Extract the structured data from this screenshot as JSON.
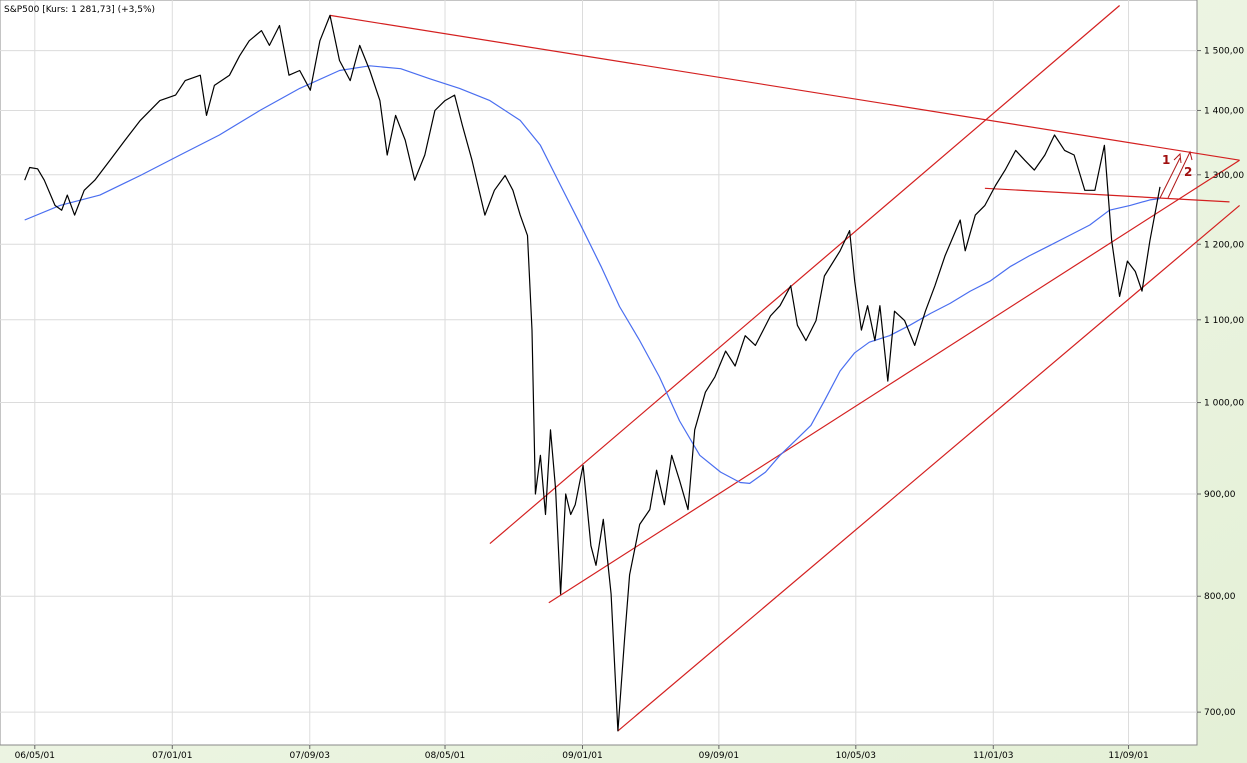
{
  "chart_data": {
    "type": "line",
    "title": "S&P500 [Kurs: 1 281,73] (+3,5%)",
    "log_scale": true,
    "grid": true,
    "xlim": [
      "06/02/28",
      "12/01/01"
    ],
    "xticks": [
      "06/05/01",
      "07/01/01",
      "07/09/03",
      "08/05/01",
      "09/01/01",
      "09/09/01",
      "10/05/03",
      "11/01/03",
      "11/09/01"
    ],
    "ylim": [
      674,
      1590
    ],
    "yticks": [
      {
        "value": 700,
        "label": "700,00"
      },
      {
        "value": 800,
        "label": "800,00"
      },
      {
        "value": 900,
        "label": "900,00"
      },
      {
        "value": 1000,
        "label": "1 000,00"
      },
      {
        "value": 1100,
        "label": "1 100,00"
      },
      {
        "value": 1200,
        "label": "1 200,00"
      },
      {
        "value": 1300,
        "label": "1 300,00"
      },
      {
        "value": 1400,
        "label": "1 400,00"
      },
      {
        "value": 1500,
        "label": "1 500,00"
      }
    ],
    "series": [
      {
        "color": "#000000",
        "x": [
          "06/04/13",
          "06/04/22",
          "06/05/06",
          "06/05/18",
          "06/06/06",
          "06/06/18",
          "06/06/28",
          "06/07/11",
          "06/07/28",
          "06/08/16",
          "06/09/12",
          "06/10/09",
          "06/11/05",
          "06/12/10",
          "07/01/07",
          "07/01/24",
          "07/02/20",
          "07/03/03",
          "07/03/17",
          "07/04/13",
          "07/05/01",
          "07/05/18",
          "07/06/09",
          "07/06/23",
          "07/07/11",
          "07/07/28",
          "07/08/16",
          "07/09/04",
          "07/09/21",
          "07/10/09",
          "07/10/26",
          "07/11/14",
          "07/12/01",
          "07/12/19",
          "08/01/06",
          "08/01/19",
          "08/02/03",
          "08/02/20",
          "08/03/08",
          "08/03/26",
          "08/04/13",
          "08/05/01",
          "08/05/18",
          "08/06/01",
          "08/06/18",
          "08/07/11",
          "08/07/28",
          "08/08/16",
          "08/08/30",
          "08/09/12",
          "08/09/25",
          "08/10/03",
          "08/10/09",
          "08/10/18",
          "08/10/27",
          "08/11/05",
          "08/11/14",
          "08/11/23",
          "08/12/02",
          "08/12/11",
          "08/12/19",
          "09/01/02",
          "09/01/16",
          "09/01/25",
          "09/02/07",
          "09/02/21",
          "09/03/05",
          "09/03/17",
          "09/03/26",
          "09/04/13",
          "09/05/01",
          "09/05/13",
          "09/05/27",
          "09/06/09",
          "09/06/23",
          "09/07/08",
          "09/07/20",
          "09/08/08",
          "09/08/25",
          "09/09/13",
          "09/09/30",
          "09/10/18",
          "09/11/05",
          "09/12/02",
          "09/12/19",
          "10/01/07",
          "10/01/19",
          "10/02/03",
          "10/02/21",
          "10/03/08",
          "10/04/05",
          "10/04/22",
          "10/05/01",
          "10/05/13",
          "10/05/24",
          "10/06/06",
          "10/06/15",
          "10/06/29",
          "10/07/11",
          "10/07/29",
          "10/08/16",
          "10/09/04",
          "10/09/21",
          "10/10/09",
          "10/11/05",
          "10/11/14",
          "10/12/02",
          "10/12/19",
          "11/01/07",
          "11/01/24",
          "11/02/12",
          "11/02/28",
          "11/03/17",
          "11/04/05",
          "11/04/22",
          "11/05/10",
          "11/05/27",
          "11/06/15",
          "11/07/03",
          "11/07/20",
          "11/08/02",
          "11/08/16",
          "11/08/30",
          "11/09/13",
          "11/09/25",
          "11/10/09",
          "11/10/27"
        ],
        "values": [
          1292,
          1311,
          1309,
          1292,
          1255,
          1248,
          1270,
          1241,
          1277,
          1292,
          1322,
          1353,
          1384,
          1416,
          1425,
          1449,
          1458,
          1392,
          1441,
          1458,
          1491,
          1517,
          1535,
          1509,
          1544,
          1458,
          1466,
          1433,
          1517,
          1562,
          1483,
          1449,
          1509,
          1466,
          1416,
          1330,
          1392,
          1353,
          1292,
          1330,
          1400,
          1416,
          1425,
          1376,
          1322,
          1241,
          1277,
          1299,
          1277,
          1241,
          1212,
          1087,
          900,
          941,
          879,
          969,
          905,
          802,
          900,
          879,
          889,
          930,
          848,
          829,
          874,
          802,
          685,
          762,
          820,
          869,
          884,
          925,
          889,
          941,
          914,
          884,
          969,
          1012,
          1030,
          1061,
          1043,
          1080,
          1068,
          1105,
          1118,
          1144,
          1093,
          1074,
          1099,
          1157,
          1191,
          1219,
          1150,
          1087,
          1118,
          1074,
          1118,
          1025,
          1111,
          1099,
          1068,
          1111,
          1144,
          1184,
          1234,
          1191,
          1241,
          1255,
          1284,
          1307,
          1337,
          1322,
          1307,
          1330,
          1361,
          1337,
          1330,
          1277,
          1277,
          1345,
          1205,
          1130,
          1177,
          1163,
          1137,
          1205,
          1282
        ]
      },
      {
        "color": "#4a6ef0",
        "x": [
          "06/04/13",
          "06/06/15",
          "06/08/25",
          "06/11/05",
          "07/01/15",
          "07/03/26",
          "07/06/06",
          "07/08/16",
          "07/10/26",
          "07/12/19",
          "08/02/12",
          "08/04/04",
          "08/05/27",
          "08/07/20",
          "08/09/12",
          "08/10/18",
          "08/11/23",
          "08/12/28",
          "09/02/03",
          "09/03/08",
          "09/04/13",
          "09/05/18",
          "09/06/23",
          "09/07/29",
          "09/09/04",
          "09/10/09",
          "09/10/26",
          "09/11/23",
          "09/12/19",
          "10/01/15",
          "10/02/12",
          "10/03/08",
          "10/04/05",
          "10/05/01",
          "10/05/27",
          "10/07/02",
          "10/08/07",
          "10/09/13",
          "10/10/18",
          "10/11/23",
          "10/12/28",
          "11/02/03",
          "11/03/08",
          "11/04/13",
          "11/05/18",
          "11/06/24",
          "11/07/29",
          "11/09/04",
          "11/10/09",
          "11/10/27"
        ],
        "values": [
          1234,
          1255,
          1270,
          1299,
          1330,
          1361,
          1400,
          1436,
          1466,
          1474,
          1469,
          1452,
          1436,
          1416,
          1384,
          1345,
          1284,
          1228,
          1170,
          1117,
          1074,
          1030,
          979,
          941,
          923,
          912,
          911,
          923,
          941,
          957,
          974,
          1002,
          1037,
          1059,
          1072,
          1080,
          1093,
          1108,
          1121,
          1137,
          1150,
          1170,
          1184,
          1198,
          1212,
          1227,
          1248,
          1255,
          1263,
          1265
        ]
      }
    ],
    "trendlines": [
      {
        "color": "#d42020",
        "x": [
          "07/10/09",
          "12/03/17"
        ],
        "values": [
          1562,
          1322
        ]
      },
      {
        "color": "#d42020",
        "x": [
          "08/07/20",
          "11/08/16"
        ],
        "values": [
          850,
          1580
        ]
      },
      {
        "color": "#d42020",
        "x": [
          "08/11/02",
          "12/03/17"
        ],
        "values": [
          794,
          1322
        ]
      },
      {
        "color": "#d42020",
        "x": [
          "09/03/05",
          "12/03/17"
        ],
        "values": [
          685,
          1255
        ]
      },
      {
        "color": "#d42020",
        "x": [
          "10/12/19",
          "12/02/28"
        ],
        "values": [
          1280,
          1260
        ]
      }
    ],
    "annotations": [
      "1",
      "2"
    ]
  }
}
